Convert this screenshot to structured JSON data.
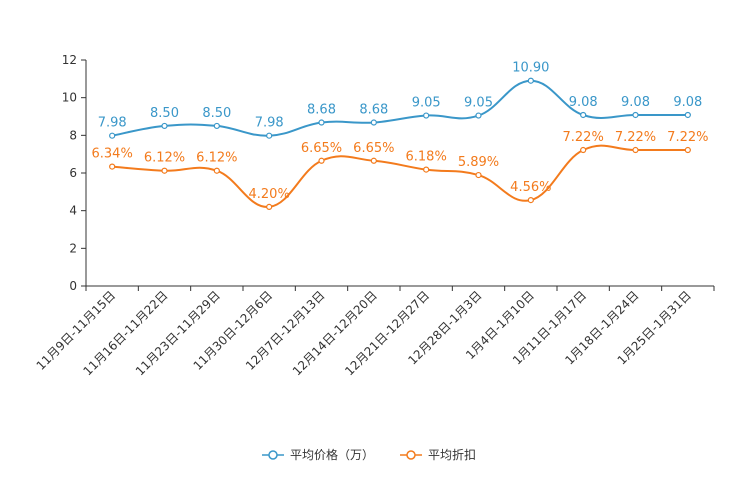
{
  "chart_data": {
    "type": "line",
    "title": "",
    "xlabel": "",
    "ylabel": "",
    "ylim": [
      0,
      12
    ],
    "yticks": [
      0,
      2,
      4,
      6,
      8,
      10,
      12
    ],
    "grid": false,
    "legend_position": "bottom-center",
    "categories": [
      "11月9日-11月15日",
      "11月16日-11月22日",
      "11月23日-11月29日",
      "11月30日-12月6日",
      "12月7日-12月13日",
      "12月14日-12月20日",
      "12月21日-12月27日",
      "12月28日-1月3日",
      "1月4日-1月10日",
      "1月11日-1月17日",
      "1月18日-1月24日",
      "1月25日-1月31日"
    ],
    "series": [
      {
        "name": "平均价格（万）",
        "color": "#3a97c9",
        "values": [
          7.98,
          8.5,
          8.5,
          7.98,
          8.68,
          8.68,
          9.05,
          9.05,
          10.9,
          9.08,
          9.08,
          9.08
        ],
        "labels": [
          "7.98",
          "8.50",
          "8.50",
          "7.98",
          "8.68",
          "8.68",
          "9.05",
          "9.05",
          "10.90",
          "9.08",
          "9.08",
          "9.08"
        ]
      },
      {
        "name": "平均折扣",
        "color": "#f37b1d",
        "values": [
          6.34,
          6.12,
          6.12,
          4.2,
          6.65,
          6.65,
          6.18,
          5.89,
          4.56,
          7.22,
          7.22,
          7.22
        ],
        "labels": [
          "6.34%",
          "6.12%",
          "6.12%",
          "4.20%",
          "6.65%",
          "6.65%",
          "6.18%",
          "5.89%",
          "4.56%",
          "7.22%",
          "7.22%",
          "7.22%"
        ]
      }
    ]
  }
}
